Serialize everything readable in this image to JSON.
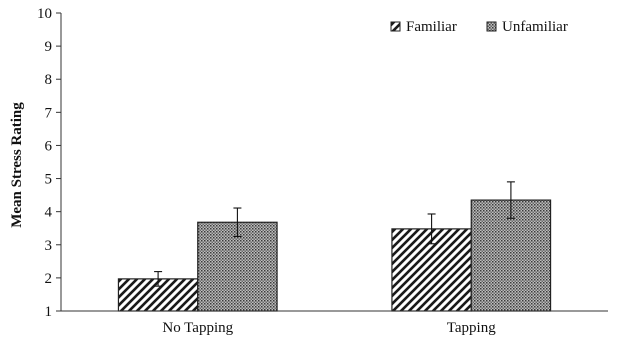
{
  "chart_data": {
    "type": "bar",
    "title": "",
    "xlabel": "",
    "ylabel": "Mean Stress Rating",
    "categories": [
      "No Tapping",
      "Tapping"
    ],
    "series": [
      {
        "name": "Familiar",
        "values": [
          1.97,
          3.48
        ],
        "error": [
          0.22,
          0.45
        ],
        "pattern": "diagonal-stripes"
      },
      {
        "name": "Unfamiliar",
        "values": [
          3.68,
          4.35
        ],
        "error": [
          0.43,
          0.55
        ],
        "pattern": "crosshatch"
      }
    ],
    "ylim": [
      1,
      10
    ],
    "yticks": [
      1,
      2,
      3,
      4,
      5,
      6,
      7,
      8,
      9,
      10
    ],
    "grid": false,
    "legend": "top-right",
    "error_bars": true
  }
}
